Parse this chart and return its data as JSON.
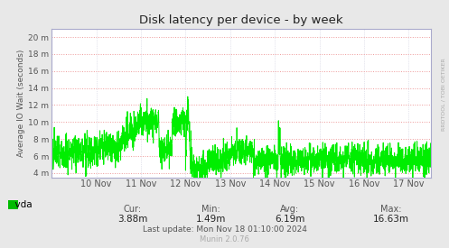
{
  "title": "Disk latency per device - by week",
  "ylabel": "Average IO Wait (seconds)",
  "bg_color": "#e8e8e8",
  "plot_bg_color": "#ffffff",
  "grid_color_h": "#ee9999",
  "grid_color_v": "#ccccdd",
  "line_color": "#00ee00",
  "line_width": 0.7,
  "ylim": [
    0.0035,
    0.021
  ],
  "yticks": [
    0.004,
    0.006,
    0.008,
    0.01,
    0.012,
    0.014,
    0.016,
    0.018,
    0.02
  ],
  "ytick_labels": [
    "4 m",
    "6 m",
    "8 m",
    "10 m",
    "12 m",
    "14 m",
    "16 m",
    "18 m",
    "20 m"
  ],
  "xtick_labels": [
    "10 Nov",
    "11 Nov",
    "12 Nov",
    "13 Nov",
    "14 Nov",
    "15 Nov",
    "16 Nov",
    "17 Nov"
  ],
  "legend_label": "vda",
  "legend_color": "#00bb00",
  "cur_label": "Cur:",
  "cur_val": "3.88m",
  "min_label": "Min:",
  "min_val": "1.49m",
  "avg_label": "Avg:",
  "avg_val": "6.19m",
  "max_label": "Max:",
  "max_val": "16.63m",
  "last_update": "Last update: Mon Nov 18 01:10:00 2024",
  "munin_label": "Munin 2.0.76",
  "rrdtool_label": "RRDTOOL / TOBI OETIKER",
  "title_color": "#222222",
  "tick_color": "#555555",
  "stat_label_color": "#555555",
  "stat_value_color": "#222222",
  "spine_color": "#aaaacc"
}
